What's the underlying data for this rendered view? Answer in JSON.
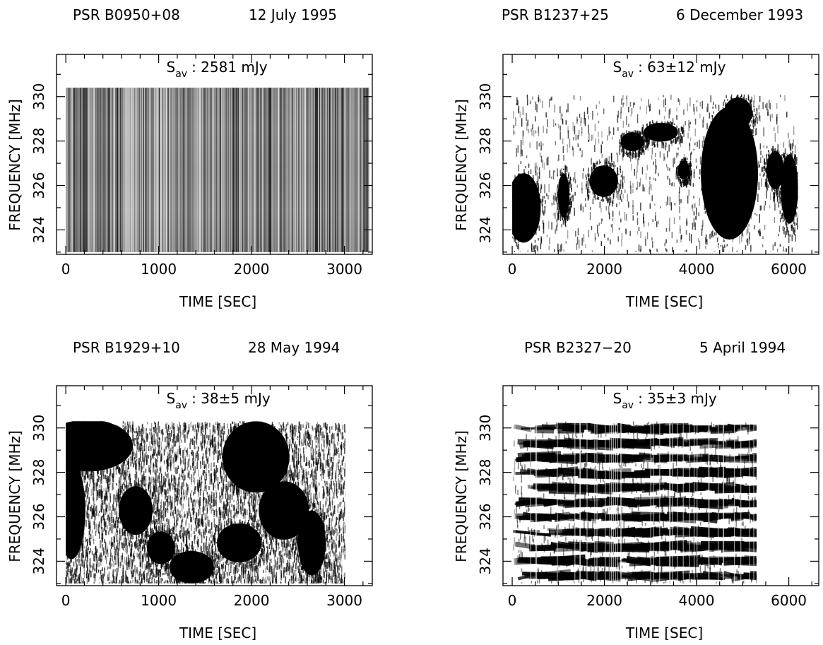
{
  "chart_data": [
    {
      "type": "heatmap",
      "pulsar": "PSR B0950+08",
      "date": "12 July 1995",
      "flux_symbol": "S",
      "flux_subscript": "av",
      "flux_value": ": 2581 mJy",
      "xlabel": "TIME [SEC]",
      "ylabel": "FREQUENCY [MHz]",
      "xlim": [
        -100,
        3300
      ],
      "ylim": [
        322.9,
        331.9
      ],
      "x_ticks": [
        0,
        1000,
        2000,
        3000
      ],
      "y_ticks": [
        324,
        326,
        328,
        330
      ],
      "data_extent": {
        "x": [
          0,
          3270
        ],
        "y": [
          323.0,
          330.4
        ]
      },
      "pattern": "vertical-striations",
      "colors": {
        "ink": "#000000",
        "background": "#ffffff"
      }
    },
    {
      "type": "heatmap",
      "pulsar": "PSR B1237+25",
      "date": "6 December 1993",
      "flux_symbol": "S",
      "flux_subscript": "av",
      "flux_value": ":   63±12 mJy",
      "xlabel": "TIME [SEC]",
      "ylabel": "FREQUENCY [MHz]",
      "xlim": [
        -200,
        6650
      ],
      "ylim": [
        322.9,
        331.9
      ],
      "x_ticks": [
        0,
        2000,
        4000,
        6000
      ],
      "y_ticks": [
        324,
        326,
        328,
        330
      ],
      "data_extent": {
        "x": [
          0,
          6200
        ],
        "y": [
          323.0,
          330.1
        ]
      },
      "pattern": "scintles",
      "colors": {
        "ink": "#000000",
        "background": "#ffffff"
      }
    },
    {
      "type": "heatmap",
      "pulsar": "PSR B1929+10",
      "date": "28 May 1994",
      "flux_symbol": "S",
      "flux_subscript": "av",
      "flux_value": ":   38±5  mJy",
      "xlabel": "TIME [SEC]",
      "ylabel": "FREQUENCY [MHz]",
      "xlim": [
        -100,
        3300
      ],
      "ylim": [
        322.9,
        331.9
      ],
      "x_ticks": [
        0,
        1000,
        2000,
        3000
      ],
      "y_ticks": [
        324,
        326,
        328,
        330
      ],
      "data_extent": {
        "x": [
          0,
          3010
        ],
        "y": [
          323.0,
          330.3
        ]
      },
      "pattern": "scintles",
      "colors": {
        "ink": "#000000",
        "background": "#ffffff"
      }
    },
    {
      "type": "heatmap",
      "pulsar": "PSR B2327−20",
      "date": "5 April 1994",
      "flux_symbol": "S",
      "flux_subscript": "av",
      "flux_value": ":   35±3  mJy",
      "xlabel": "TIME [SEC]",
      "ylabel": "FREQUENCY [MHz]",
      "xlim": [
        -200,
        6650
      ],
      "ylim": [
        322.9,
        331.9
      ],
      "x_ticks": [
        0,
        2000,
        4000,
        6000
      ],
      "y_ticks": [
        324,
        326,
        328,
        330
      ],
      "data_extent": {
        "x": [
          0,
          5300
        ],
        "y": [
          323.0,
          330.3
        ]
      },
      "pattern": "horizontal-bands",
      "colors": {
        "ink": "#000000",
        "background": "#ffffff"
      }
    }
  ]
}
